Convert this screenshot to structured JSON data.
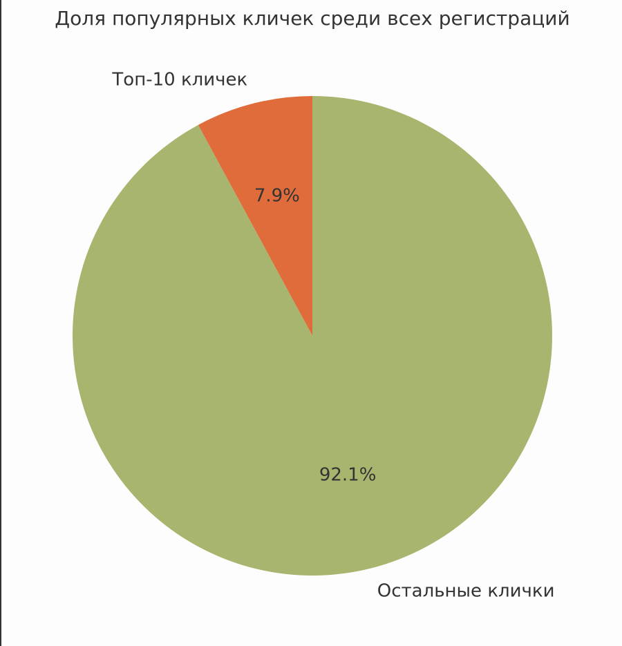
{
  "chart_data": {
    "type": "pie",
    "title": "Доля популярных кличек среди всех регистраций",
    "categories": [
      "Топ-10 кличек",
      "Остальные клички"
    ],
    "values": [
      7.9,
      92.1
    ],
    "value_labels": [
      "7.9%",
      "92.1%"
    ],
    "colors": [
      "#e06c3c",
      "#a8b56e"
    ]
  }
}
